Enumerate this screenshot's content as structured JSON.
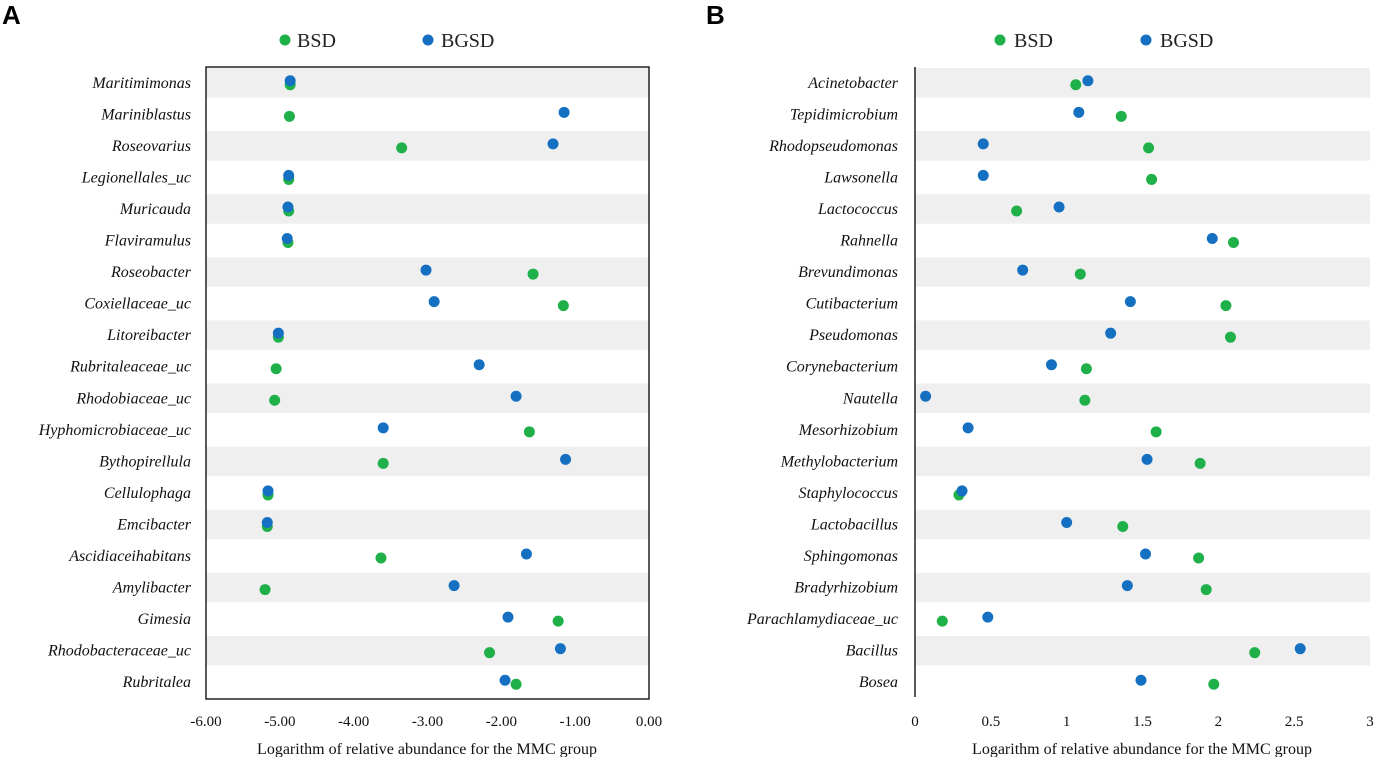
{
  "colors": {
    "bsd": "#1fb04a",
    "bgsd": "#1670c2",
    "band": "#efefef",
    "frame": "#000000"
  },
  "chart_data": [
    {
      "panel": "A",
      "type": "scatter",
      "orientation": "horizontal",
      "legend": [
        "BSD",
        "BGSD"
      ],
      "xlabel": "Logarithm of relative abundance  for the MMC group",
      "xlim": [
        -6,
        0
      ],
      "xticks": [
        -6,
        -5,
        -4,
        -3,
        -2,
        -1,
        0
      ],
      "xtick_labels": [
        "-6.00",
        "-5.00",
        "-4.00",
        "-3.00",
        "-2.00",
        "-1.00",
        "0.00"
      ],
      "categories": [
        "Maritimimonas",
        "Mariniblastus",
        "Roseovarius",
        "Legionellales_uc",
        "Muricauda",
        "Flaviramulus",
        "Roseobacter",
        "Coxiellaceae_uc",
        "Litoreibacter",
        "Rubritaleaceae_uc",
        "Rhodobiaceae_uc",
        "Hyphomicrobiaceae_uc",
        "Bythopirellula",
        "Cellulophaga",
        "Emcibacter",
        "Ascidiaceihabitans",
        "Amylibacter",
        "Gimesia",
        "Rhodobacteraceae_uc",
        "Rubritalea"
      ],
      "series": [
        {
          "name": "BSD",
          "values": [
            -4.86,
            -4.87,
            -3.35,
            -4.88,
            -4.88,
            -4.89,
            -1.57,
            -1.16,
            -5.02,
            -5.05,
            -5.07,
            -1.62,
            -3.6,
            -5.16,
            -5.17,
            -3.63,
            -5.2,
            -1.23,
            -2.16,
            -1.8
          ]
        },
        {
          "name": "BGSD",
          "values": [
            -4.86,
            -1.15,
            -1.3,
            -4.88,
            -4.89,
            -4.9,
            -3.02,
            -2.91,
            -5.02,
            -2.3,
            -1.8,
            -3.6,
            -1.13,
            -5.16,
            -5.17,
            -1.66,
            -2.64,
            -1.91,
            -1.2,
            -1.95
          ]
        }
      ]
    },
    {
      "panel": "B",
      "type": "scatter",
      "orientation": "horizontal",
      "legend": [
        "BSD",
        "BGSD"
      ],
      "xlabel": "Logarithm of relative abundance  for the MMC group",
      "xlim": [
        0,
        3
      ],
      "xticks": [
        0,
        0.5,
        1,
        1.5,
        2,
        2.5,
        3
      ],
      "xtick_labels": [
        "0",
        "0.5",
        "1",
        "1.5",
        "2",
        "2.5",
        "3"
      ],
      "categories": [
        "Acinetobacter",
        "Tepidimicrobium",
        "Rhodopseudomonas",
        "Lawsonella",
        "Lactococcus",
        "Rahnella",
        "Brevundimonas",
        "Cutibacterium",
        "Pseudomonas",
        "Corynebacterium",
        "Nautella",
        "Mesorhizobium",
        "Methylobacterium",
        "Staphylococcus",
        "Lactobacillus",
        "Sphingomonas",
        "Bradyrhizobium",
        "Parachlamydiaceae_uc",
        "Bacillus",
        "Bosea"
      ],
      "series": [
        {
          "name": "BSD",
          "values": [
            1.06,
            1.36,
            1.54,
            1.56,
            0.67,
            2.1,
            1.09,
            2.05,
            2.08,
            1.13,
            1.12,
            1.59,
            1.88,
            0.29,
            1.37,
            1.87,
            1.92,
            0.18,
            2.24,
            1.97
          ]
        },
        {
          "name": "BGSD",
          "values": [
            1.14,
            1.08,
            0.45,
            0.45,
            0.95,
            1.96,
            0.71,
            1.42,
            1.29,
            0.9,
            0.07,
            0.35,
            1.53,
            0.31,
            1.0,
            1.52,
            1.4,
            0.48,
            2.54,
            1.49
          ]
        }
      ]
    }
  ]
}
